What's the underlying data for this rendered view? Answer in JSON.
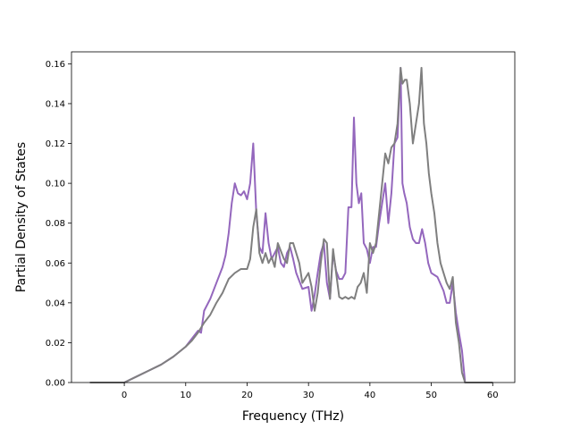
{
  "chart_data": {
    "type": "line",
    "title": "",
    "xlabel": "Frequency (THz)",
    "ylabel": "Partial Density of States",
    "xlim": [
      -8.6,
      63.6
    ],
    "ylim": [
      0,
      0.166
    ],
    "xticks": [
      0,
      10,
      20,
      30,
      40,
      50,
      60
    ],
    "yticks": [
      0.0,
      0.02,
      0.04,
      0.06,
      0.08,
      0.1,
      0.12,
      0.14,
      0.16
    ],
    "ytick_labels": [
      "0.00",
      "0.02",
      "0.04",
      "0.06",
      "0.08",
      "0.10",
      "0.12",
      "0.14",
      "0.16"
    ],
    "grid": false,
    "legend": "none",
    "series": [
      {
        "color": "#9467bd",
        "x": [
          -5.6,
          0,
          2,
          4,
          6,
          8,
          10,
          11,
          12,
          12.5,
          13,
          14,
          15,
          16,
          16.5,
          17,
          17.5,
          18,
          18.5,
          19,
          19.5,
          20,
          20.5,
          21,
          21.5,
          22,
          22.5,
          23,
          23.5,
          24,
          25,
          25.5,
          26,
          26.5,
          27,
          27.5,
          28,
          29,
          30,
          30.5,
          31,
          31.5,
          32,
          32.5,
          33,
          33.5,
          34,
          34.5,
          35,
          35.5,
          36,
          36.5,
          37,
          37.4,
          37.8,
          38.2,
          38.6,
          39,
          39.5,
          40,
          40.5,
          41,
          41.5,
          42,
          42.5,
          43,
          43.5,
          44,
          44.5,
          45,
          45.3,
          45.6,
          46,
          46.5,
          47,
          47.5,
          48,
          48.5,
          49,
          49.5,
          50,
          51,
          52,
          52.5,
          53,
          53.5,
          54,
          54.5,
          55,
          55.5,
          60
        ],
        "y": [
          0,
          0,
          0.003,
          0.006,
          0.009,
          0.013,
          0.018,
          0.022,
          0.026,
          0.025,
          0.036,
          0.042,
          0.05,
          0.058,
          0.064,
          0.075,
          0.09,
          0.1,
          0.095,
          0.094,
          0.096,
          0.092,
          0.1,
          0.12,
          0.085,
          0.068,
          0.065,
          0.085,
          0.07,
          0.062,
          0.068,
          0.06,
          0.058,
          0.065,
          0.068,
          0.062,
          0.055,
          0.047,
          0.048,
          0.036,
          0.044,
          0.055,
          0.065,
          0.07,
          0.05,
          0.042,
          0.065,
          0.056,
          0.052,
          0.052,
          0.055,
          0.088,
          0.088,
          0.133,
          0.1,
          0.09,
          0.095,
          0.07,
          0.067,
          0.06,
          0.068,
          0.068,
          0.08,
          0.09,
          0.1,
          0.08,
          0.095,
          0.12,
          0.123,
          0.158,
          0.1,
          0.095,
          0.09,
          0.078,
          0.072,
          0.07,
          0.07,
          0.077,
          0.07,
          0.06,
          0.055,
          0.053,
          0.046,
          0.04,
          0.04,
          0.05,
          0.035,
          0.025,
          0.016,
          0,
          0
        ]
      },
      {
        "color": "#7f7f7f",
        "x": [
          -5.6,
          0,
          2,
          4,
          6,
          8,
          10,
          11,
          12,
          13,
          14,
          15,
          16,
          17,
          18,
          19,
          20,
          20.5,
          21,
          21.5,
          22,
          22.5,
          23,
          23.5,
          24,
          24.5,
          25,
          25.5,
          26,
          26.5,
          27,
          27.5,
          28,
          28.5,
          29,
          30,
          30.5,
          31,
          31.5,
          32,
          32.5,
          33,
          33.5,
          34,
          34.5,
          35,
          35.5,
          36,
          36.5,
          37,
          37.5,
          38,
          38.5,
          39,
          39.5,
          40,
          40.5,
          41,
          41.5,
          42,
          42.5,
          43,
          43.5,
          44,
          44.5,
          45,
          45.3,
          45.7,
          46,
          46.5,
          47,
          47.5,
          48,
          48.4,
          48.8,
          49.2,
          49.6,
          50,
          50.5,
          51,
          51.5,
          52,
          52.5,
          53,
          53.5,
          54,
          54.5,
          55,
          55.5,
          60
        ],
        "y": [
          0,
          0,
          0.003,
          0.006,
          0.009,
          0.013,
          0.018,
          0.021,
          0.025,
          0.03,
          0.034,
          0.04,
          0.045,
          0.052,
          0.055,
          0.057,
          0.057,
          0.062,
          0.078,
          0.087,
          0.065,
          0.06,
          0.065,
          0.06,
          0.063,
          0.058,
          0.07,
          0.066,
          0.062,
          0.06,
          0.07,
          0.07,
          0.065,
          0.06,
          0.05,
          0.055,
          0.048,
          0.036,
          0.045,
          0.06,
          0.072,
          0.07,
          0.042,
          0.067,
          0.055,
          0.043,
          0.042,
          0.043,
          0.042,
          0.043,
          0.042,
          0.048,
          0.05,
          0.055,
          0.045,
          0.07,
          0.065,
          0.07,
          0.085,
          0.1,
          0.115,
          0.11,
          0.118,
          0.12,
          0.13,
          0.158,
          0.15,
          0.152,
          0.152,
          0.14,
          0.12,
          0.13,
          0.14,
          0.158,
          0.13,
          0.12,
          0.105,
          0.095,
          0.085,
          0.07,
          0.06,
          0.055,
          0.05,
          0.047,
          0.053,
          0.03,
          0.02,
          0.005,
          0,
          0
        ]
      }
    ]
  }
}
